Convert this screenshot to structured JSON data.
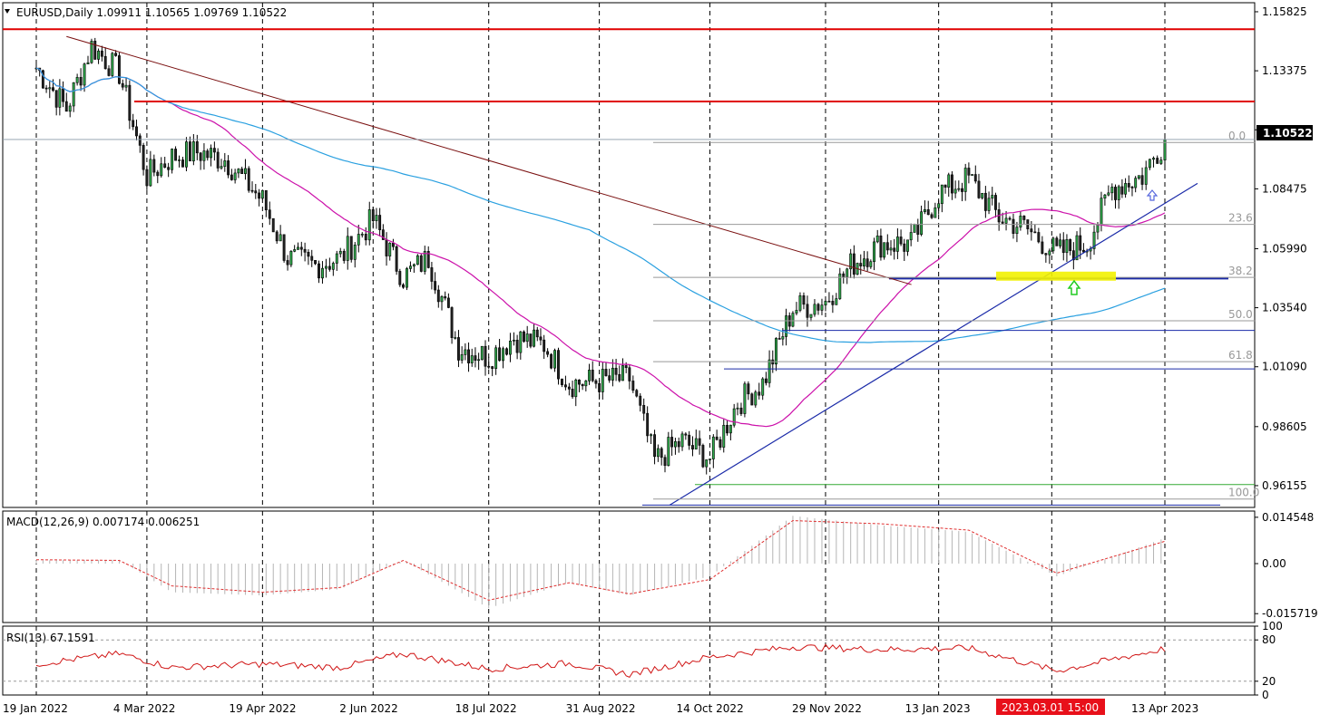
{
  "window": {
    "symbol_line": "EURUSD,Daily  1.09911 1.10565 1.09769 1.10522",
    "current_price": "1.10522",
    "crosshair_time": "2023.03.01 15:00"
  },
  "colors": {
    "bull": "#2ea84a",
    "bear": "#222222",
    "ma_fast": "#cc11aa",
    "ma_slow": "#2aa0e0",
    "resistance": "#e00000",
    "trend": "#1a2aa8",
    "downtrend": "#7a1010",
    "fib": "#999999",
    "macd_hist": "#b5b5b5",
    "macd_signal": "#e03030",
    "rsi": "#d01515",
    "highlight": "#f2f200"
  },
  "chart_data": [
    {
      "type": "candlestick",
      "title": "EURUSD,Daily",
      "header_values": [
        "1.09911",
        "1.10565",
        "1.09769",
        "1.10522"
      ],
      "x_tick_labels": [
        "19 Jan 2022",
        "4 Mar 2022",
        "19 Apr 2022",
        "2 Jun 2022",
        "18 Jul 2022",
        "31 Aug 2022",
        "14 Oct 2022",
        "29 Nov 2022",
        "13 Jan 2023",
        "13 Apr 2023"
      ],
      "y_tick_labels": [
        "1.15825",
        "1.13375",
        "1.10925",
        "1.08475",
        "1.05990",
        "1.03540",
        "1.01090",
        "0.98605",
        "0.96155"
      ],
      "ylim": [
        0.9525,
        1.162
      ],
      "current_price": 1.10522,
      "x": [
        "2022-01-19",
        "2022-01-31",
        "2022-02-10",
        "2022-02-21",
        "2022-03-04",
        "2022-03-14",
        "2022-03-24",
        "2022-04-04",
        "2022-04-19",
        "2022-04-29",
        "2022-05-10",
        "2022-05-20",
        "2022-06-02",
        "2022-06-14",
        "2022-06-24",
        "2022-07-06",
        "2022-07-18",
        "2022-07-28",
        "2022-08-09",
        "2022-08-19",
        "2022-08-31",
        "2022-09-12",
        "2022-09-22",
        "2022-10-03",
        "2022-10-14",
        "2022-10-25",
        "2022-11-04",
        "2022-11-16",
        "2022-11-29",
        "2022-12-09",
        "2022-12-21",
        "2023-01-02",
        "2023-01-13",
        "2023-01-25",
        "2023-02-06",
        "2023-02-16",
        "2023-03-01",
        "2023-03-13",
        "2023-03-23",
        "2023-04-04",
        "2023-04-13"
      ],
      "close": [
        1.135,
        1.118,
        1.144,
        1.133,
        1.09,
        1.098,
        1.1,
        1.097,
        1.08,
        1.056,
        1.053,
        1.056,
        1.072,
        1.048,
        1.056,
        1.019,
        1.015,
        1.023,
        1.02,
        1.004,
        1.005,
        1.006,
        0.972,
        0.98,
        0.973,
        0.996,
        1.004,
        1.035,
        1.038,
        1.053,
        1.062,
        1.062,
        1.083,
        1.089,
        1.073,
        1.069,
        1.058,
        1.062,
        1.085,
        1.09,
        1.1052
      ],
      "lines": {
        "horizontal_resistance": [
          1.151,
          1.121
        ],
        "support": [
          0.9535,
          0.962,
          1.01,
          1.026,
          1.0475
        ],
        "uptrend_from": [
          "2022-09-28",
          0.9535
        ],
        "uptrend_to": [
          "2023-04-26",
          1.087
        ],
        "downtrend_from": [
          "2022-01-31",
          1.148
        ],
        "downtrend_to": [
          "2023-01-13",
          1.045
        ]
      },
      "fibonacci": {
        "levels": [
          "0.0",
          "23.6",
          "38.2",
          "50.0",
          "61.8",
          "100.0"
        ],
        "prices": [
          1.104,
          1.07,
          1.048,
          1.03,
          1.013,
          0.956
        ]
      }
    },
    {
      "type": "line",
      "title": "MACD(12,26,9)",
      "header_values": [
        "0.007174",
        "0.006251"
      ],
      "y_tick_labels": [
        "0.014548",
        "0.00",
        "-0.015719"
      ],
      "ylim": [
        -0.0185,
        0.0165
      ],
      "x": [
        "2022-01-19",
        "2022-02-21",
        "2022-03-14",
        "2022-04-19",
        "2022-05-20",
        "2022-06-14",
        "2022-07-18",
        "2022-08-19",
        "2022-09-12",
        "2022-10-14",
        "2022-11-16",
        "2022-12-21",
        "2023-01-25",
        "2023-03-01",
        "2023-04-13"
      ],
      "histogram": [
        0.001,
        0.0012,
        -0.009,
        -0.01,
        -0.008,
        0.001,
        -0.014,
        -0.006,
        -0.01,
        -0.004,
        0.015,
        0.012,
        0.01,
        -0.004,
        0.008
      ],
      "signal": [
        0.0012,
        0.001,
        -0.007,
        -0.009,
        -0.0075,
        0.001,
        -0.0115,
        -0.006,
        -0.0095,
        -0.005,
        0.0135,
        0.0125,
        0.0105,
        -0.003,
        0.007
      ]
    },
    {
      "type": "line",
      "title": "RSI(13)",
      "header_values": [
        "67.1591"
      ],
      "y_tick_labels": [
        "100",
        "80",
        "20",
        "0"
      ],
      "ylim": [
        0,
        100
      ],
      "levels": [
        80,
        20
      ],
      "x": [
        "2022-01-19",
        "2022-02-21",
        "2022-03-14",
        "2022-04-19",
        "2022-05-20",
        "2022-06-14",
        "2022-07-18",
        "2022-08-19",
        "2022-09-12",
        "2022-10-14",
        "2022-11-16",
        "2022-12-21",
        "2023-01-25",
        "2023-03-01",
        "2023-04-13"
      ],
      "values": [
        45,
        60,
        40,
        45,
        40,
        60,
        38,
        46,
        30,
        55,
        70,
        66,
        68,
        35,
        67.16
      ]
    }
  ]
}
